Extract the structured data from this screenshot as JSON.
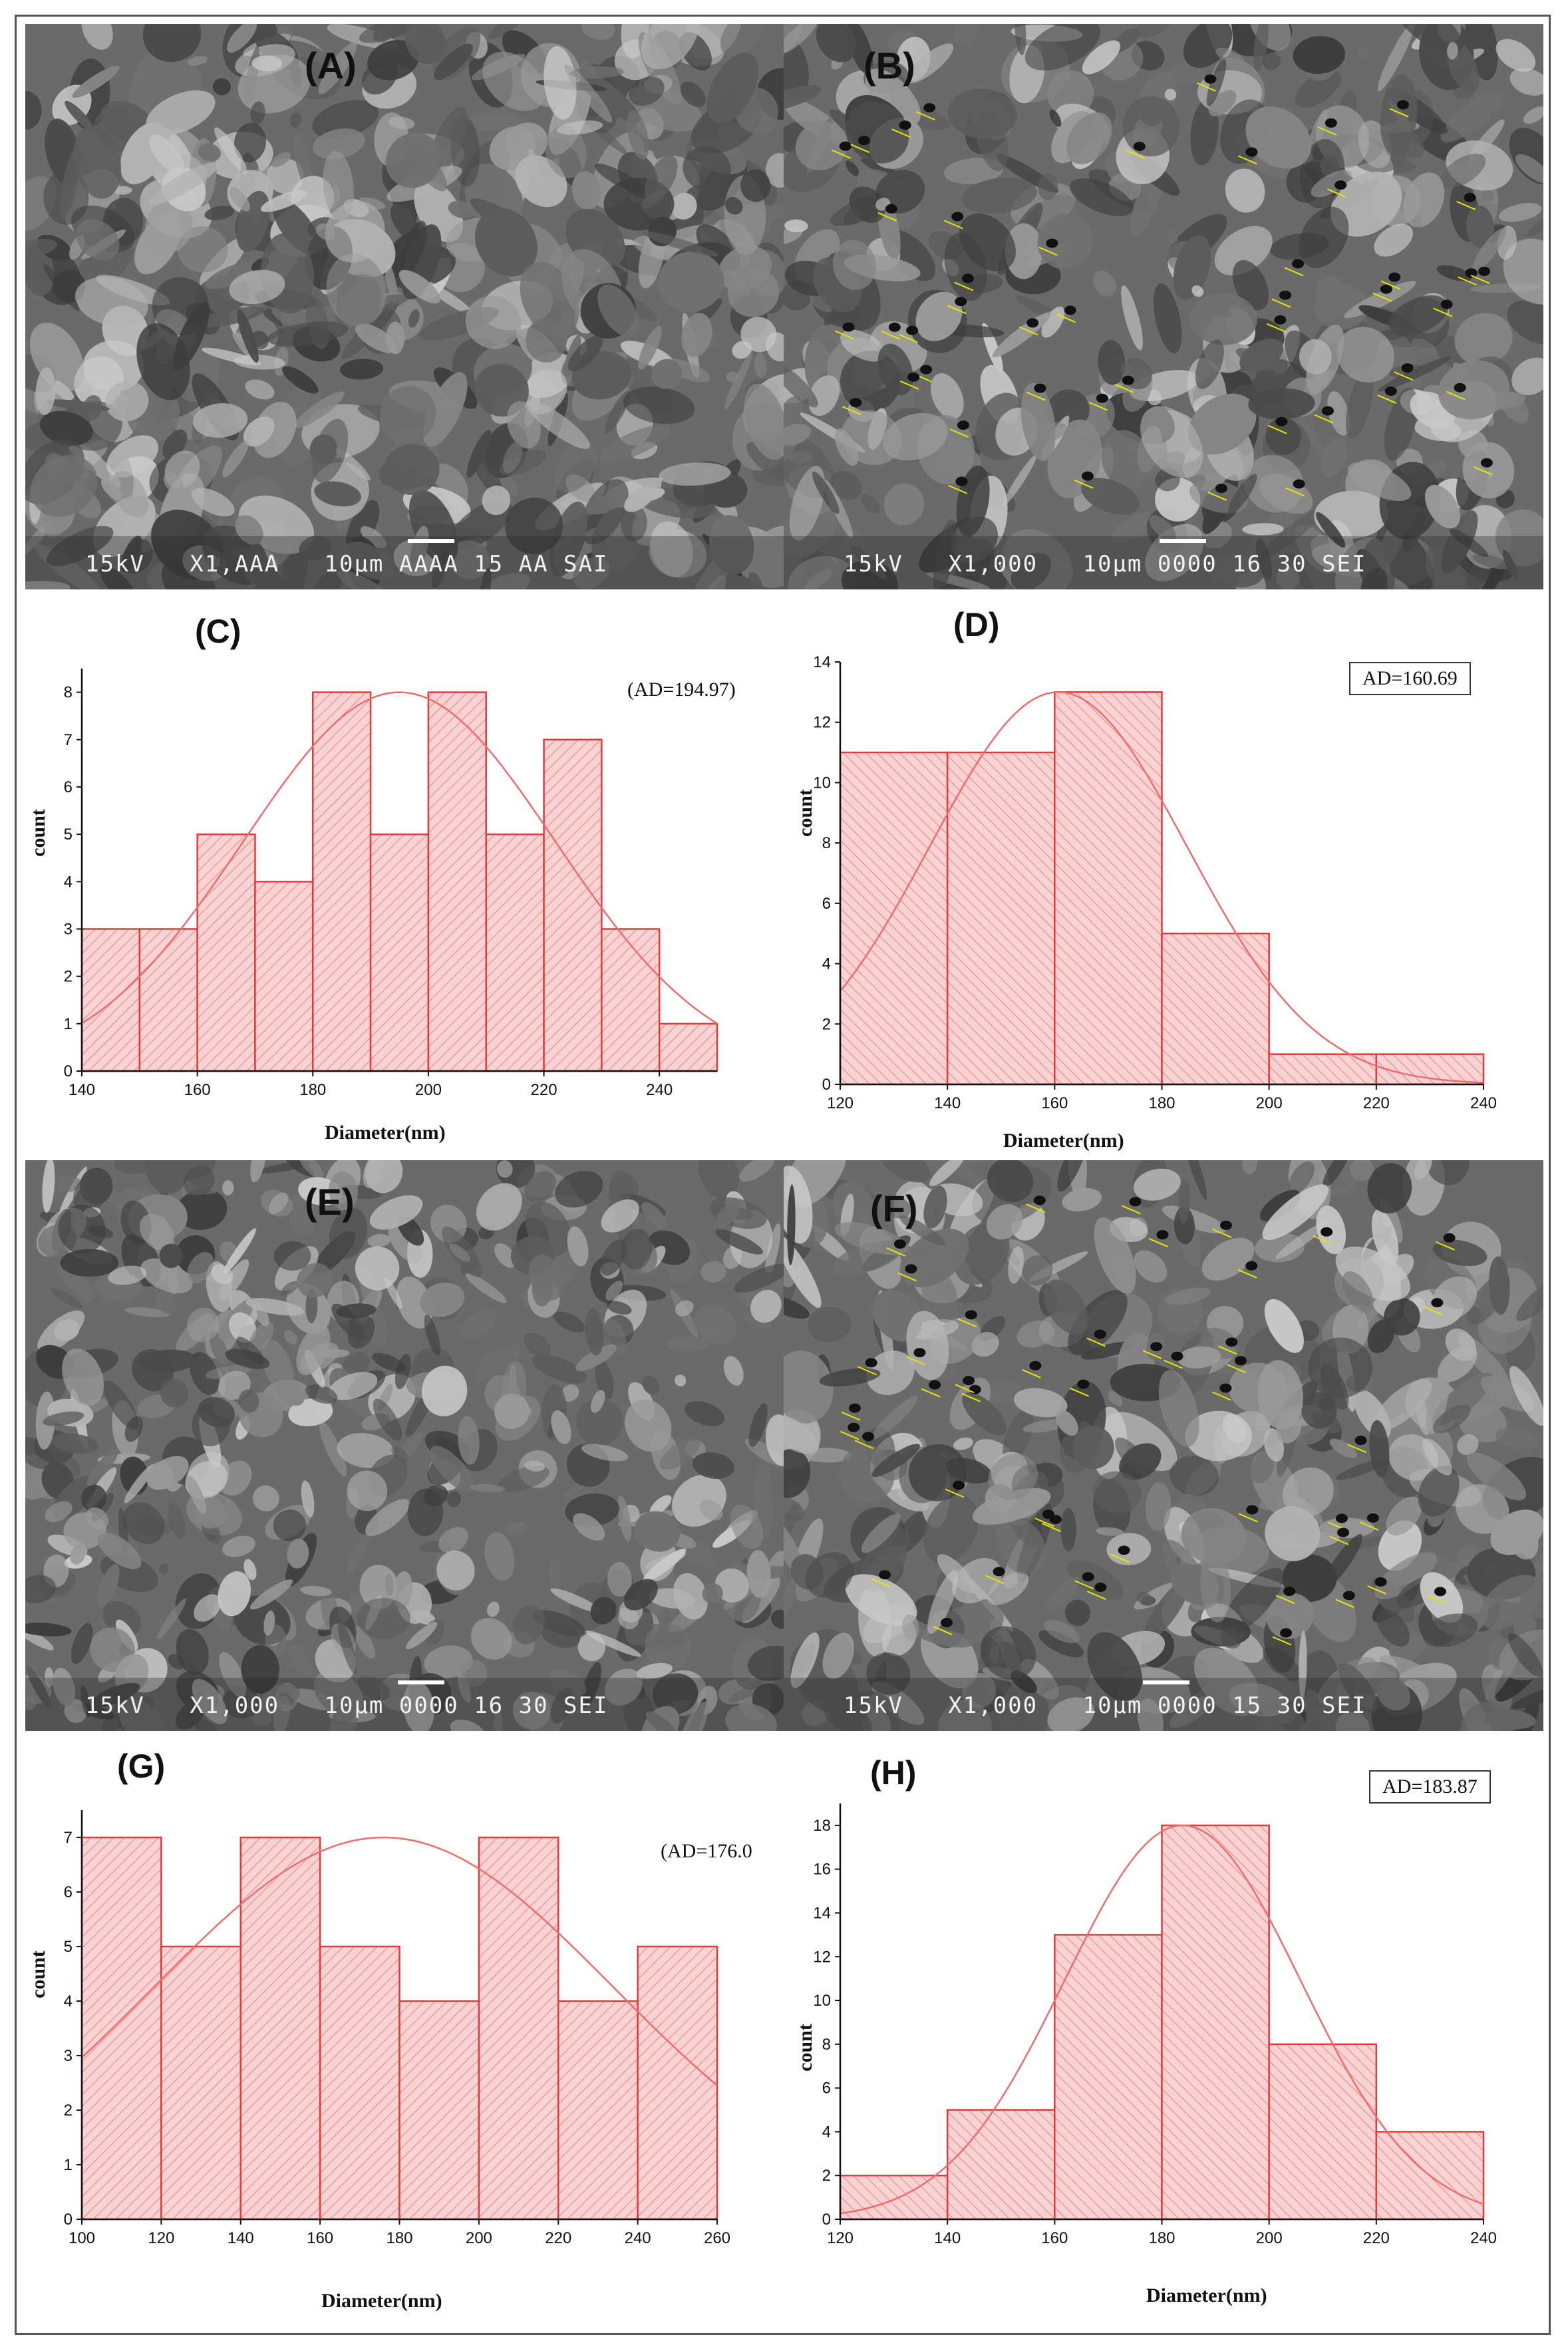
{
  "colors": {
    "bar_fill": "#f9d3d3",
    "bar_stroke": "#e23b3b",
    "hatch": "#e86a6a",
    "curve": "#f06b6b",
    "sem_bg": "#6a6a6a",
    "frame": "#555555"
  },
  "sem_panels": [
    {
      "id": "A",
      "label": "(A)",
      "footer": "15kV   X1,AAA   10μm AAAA 15 AA SAI",
      "markers": false
    },
    {
      "id": "B",
      "label": "(B)",
      "footer": "15kV   X1,000   10μm 0000 16 30 SEI",
      "markers": true
    },
    {
      "id": "E",
      "label": "(E)",
      "footer": "15kV   X1,000   10μm 0000 16 30 SEI",
      "markers": false
    },
    {
      "id": "F",
      "label": "(F)",
      "footer": "15kV   X1,000   10μm 0000 15 30 SEI",
      "markers": true
    }
  ],
  "chart_data": [
    {
      "id": "C",
      "type": "bar",
      "panel_label": "(C)",
      "annotation": "(AD=194.97)",
      "boxed": false,
      "xlabel": "Diameter(nm)",
      "ylabel": "count",
      "bin_edges": [
        140,
        150,
        160,
        170,
        180,
        190,
        200,
        210,
        220,
        230,
        240,
        250
      ],
      "values": [
        3,
        3,
        5,
        4,
        8,
        5,
        8,
        5,
        7,
        3,
        1
      ],
      "xlim": [
        140,
        250
      ],
      "ylim": [
        0,
        8.5
      ],
      "xticks": [
        140,
        160,
        180,
        200,
        220,
        240
      ],
      "yticks": [
        0,
        1,
        2,
        3,
        4,
        5,
        6,
        7,
        8
      ],
      "fit": {
        "type": "normal",
        "mean": 194.97,
        "sd": 27,
        "peak": 8
      },
      "hatch": "forward"
    },
    {
      "id": "D",
      "type": "bar",
      "panel_label": "(D)",
      "annotation": "AD=160.69",
      "boxed": true,
      "xlabel": "Diameter(nm)",
      "ylabel": "count",
      "bin_edges": [
        120,
        140,
        160,
        180,
        200,
        220,
        240
      ],
      "values": [
        11,
        11,
        13,
        5,
        1,
        1
      ],
      "xlim": [
        120,
        240
      ],
      "ylim": [
        0,
        14
      ],
      "xticks": [
        120,
        140,
        160,
        180,
        200,
        220,
        240
      ],
      "yticks": [
        0,
        2,
        4,
        6,
        8,
        10,
        12,
        14
      ],
      "fit": {
        "type": "normal",
        "mean": 160.69,
        "sd": 24,
        "peak": 13
      },
      "hatch": "back"
    },
    {
      "id": "G",
      "type": "bar",
      "panel_label": "(G)",
      "annotation": "(AD=176.0",
      "boxed": false,
      "xlabel": "Diameter(nm)",
      "ylabel": "count",
      "bin_edges": [
        100,
        120,
        140,
        160,
        180,
        200,
        220,
        240,
        260
      ],
      "values": [
        7,
        5,
        7,
        5,
        4,
        7,
        4,
        5
      ],
      "xlim": [
        100,
        260
      ],
      "ylim": [
        0,
        7.5
      ],
      "xticks": [
        100,
        120,
        140,
        160,
        180,
        200,
        220,
        240,
        260
      ],
      "yticks": [
        0,
        1,
        2,
        3,
        4,
        5,
        6,
        7
      ],
      "fit": {
        "type": "normal",
        "mean": 176.0,
        "sd": 58,
        "peak": 7
      },
      "hatch": "forward"
    },
    {
      "id": "H",
      "type": "bar",
      "panel_label": "(H)",
      "annotation": "AD=183.87",
      "boxed": true,
      "xlabel": "Diameter(nm)",
      "ylabel": "count",
      "bin_edges": [
        120,
        140,
        160,
        180,
        200,
        220,
        240
      ],
      "values": [
        2,
        5,
        13,
        18,
        8,
        4
      ],
      "xlim": [
        120,
        240
      ],
      "ylim": [
        0,
        19
      ],
      "xticks": [
        120,
        140,
        160,
        180,
        200,
        220,
        240
      ],
      "yticks": [
        0,
        2,
        4,
        6,
        8,
        10,
        12,
        14,
        16,
        18
      ],
      "fit": {
        "type": "normal",
        "mean": 183.87,
        "sd": 22,
        "peak": 18
      },
      "hatch": "back"
    }
  ]
}
